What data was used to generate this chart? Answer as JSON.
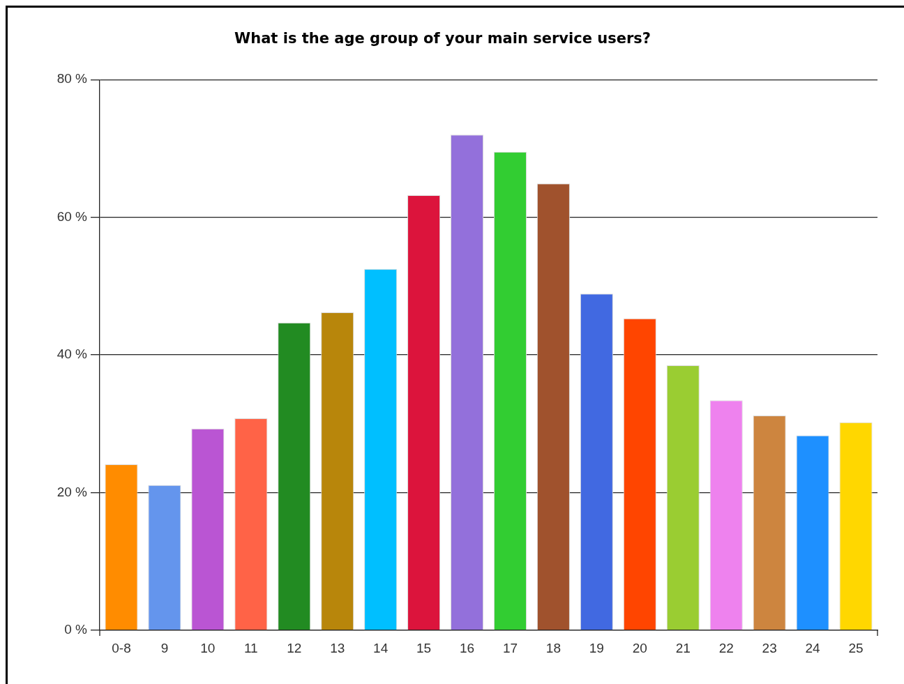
{
  "chart_data": {
    "type": "bar",
    "title": "What is the age group of your main service users?",
    "categories": [
      "0-8",
      "9",
      "10",
      "11",
      "12",
      "13",
      "14",
      "15",
      "16",
      "17",
      "18",
      "19",
      "20",
      "21",
      "22",
      "23",
      "24",
      "25"
    ],
    "values": [
      24.1,
      21.1,
      29.3,
      30.8,
      44.7,
      46.2,
      52.5,
      63.2,
      72.0,
      69.5,
      64.9,
      48.9,
      45.3,
      38.5,
      33.4,
      31.2,
      28.3,
      30.2
    ],
    "colors": [
      "#ff8c00",
      "#6495ed",
      "#ba55d3",
      "#ff6347",
      "#228b22",
      "#b8860b",
      "#00bfff",
      "#dc143c",
      "#9370db",
      "#32cd32",
      "#a0522d",
      "#4169e1",
      "#ff4500",
      "#9acd32",
      "#ee82ee",
      "#cd853f",
      "#1e90ff",
      "#ffd700"
    ],
    "ylim": [
      0,
      80
    ],
    "yticks": [
      {
        "value": 0,
        "label": "0 %"
      },
      {
        "value": 20,
        "label": "20 %"
      },
      {
        "value": 40,
        "label": "40 %"
      },
      {
        "value": 60,
        "label": "60 %"
      },
      {
        "value": 80,
        "label": "80 %"
      }
    ],
    "grid": "y"
  }
}
